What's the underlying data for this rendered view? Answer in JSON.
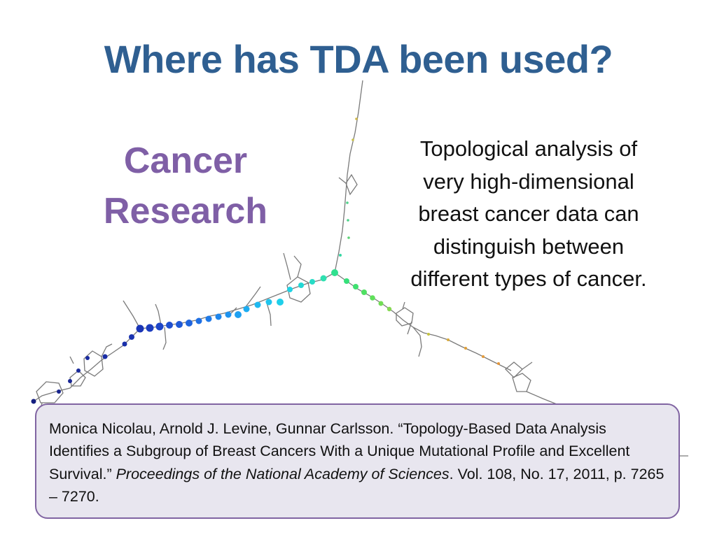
{
  "slide": {
    "title": "Where has TDA been used?",
    "topic": {
      "line1": "Cancer",
      "line2": "Research"
    },
    "description": {
      "lines": [
        "Topological analysis of",
        "very high-dimensional",
        "breast cancer data can",
        "distinguish between",
        "different types of cancer."
      ]
    },
    "citation": {
      "authors_title": "Monica Nicolau, Arnold J. Levine, Gunnar Carlsson. “Topology-Based Data Analysis Identifies a Subgroup of Breast Cancers With a Unique Mutational Profile and Excellent Survival.” ",
      "journal_part1": "Proceedings of the National Academy of Sciences",
      "details": ". Vol. 108, No. 17, 2011, p. 7265 – 7270."
    }
  },
  "colors": {
    "title": "#2f5f91",
    "topic": "#7f5fa6",
    "citation_border": "#8064a2",
    "citation_fill": "#e8e6ef"
  }
}
